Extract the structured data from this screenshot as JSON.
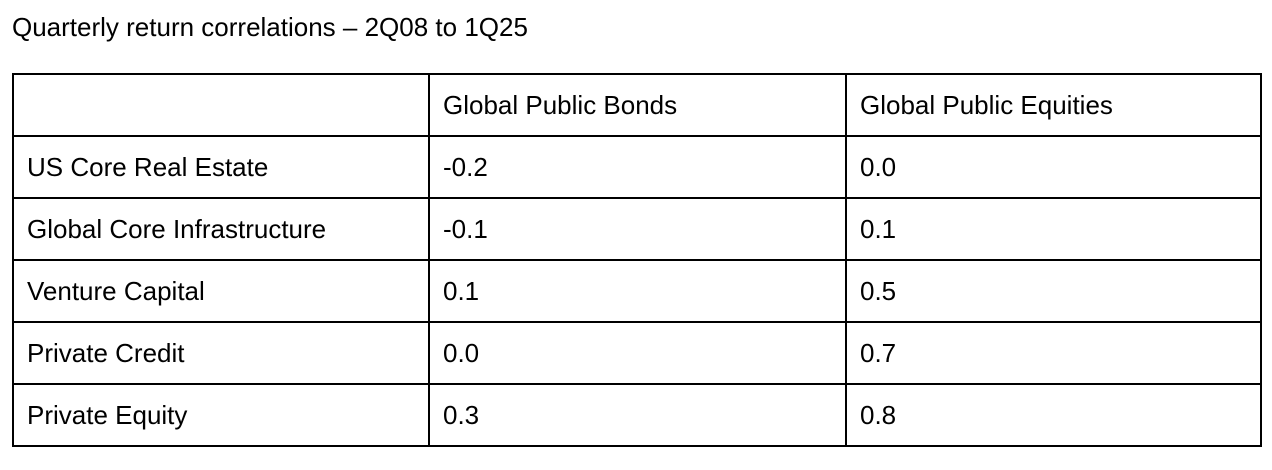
{
  "title": "Quarterly return correlations – 2Q08 to 1Q25",
  "table": {
    "header": [
      "",
      "Global Public Bonds",
      "Global Public Equities"
    ],
    "rows": [
      [
        "US Core Real Estate",
        "-0.2",
        "0.0"
      ],
      [
        "Global Core Infrastructure",
        "-0.1",
        "0.1"
      ],
      [
        "Venture Capital",
        "0.1",
        "0.5"
      ],
      [
        "Private Credit",
        "0.0",
        "0.7"
      ],
      [
        "Private Equity",
        "0.3",
        "0.8"
      ]
    ]
  }
}
